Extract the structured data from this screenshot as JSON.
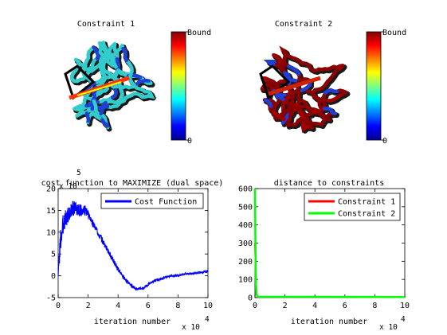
{
  "chart_data": [
    {
      "type": "image",
      "title": "Constraint 1",
      "colorbar": {
        "min_label": "0",
        "max_label": "Bound",
        "colormap": "jet"
      },
      "dominant_colors": [
        "#33cccc",
        "#1a1a1a",
        "#1f3fd9"
      ]
    },
    {
      "type": "image",
      "title": "Constraint 2",
      "colorbar": {
        "min_label": "0",
        "max_label": "Bound",
        "colormap": "jet"
      },
      "dominant_colors": [
        "#8b0000",
        "#1a1a1a",
        "#1f3fd9"
      ]
    },
    {
      "type": "line",
      "title": "cost function to MAXIMIZE (dual space)",
      "xlabel": "iteration number",
      "ylabel": "",
      "x_exponent": "x 10",
      "x_exponent_power": "4",
      "y_exponent": "x 10",
      "y_exponent_power": "5",
      "xlim": [
        0,
        10
      ],
      "ylim": [
        -5,
        20
      ],
      "xticks": [
        "0",
        "2",
        "4",
        "6",
        "8",
        "10"
      ],
      "yticks": [
        "-5",
        "0",
        "5",
        "10",
        "15",
        "20"
      ],
      "legend": "top-right",
      "series": [
        {
          "name": "Cost Function",
          "color": "#0000ff",
          "x": [
            0.0,
            0.1,
            0.2,
            0.3,
            0.4,
            0.6,
            0.8,
            1.0,
            1.2,
            1.5,
            1.8,
            2.0,
            2.4,
            2.8,
            3.2,
            3.6,
            4.0,
            4.4,
            4.8,
            5.2,
            5.6,
            6.0,
            6.5,
            7.0,
            7.5,
            8.0,
            8.5,
            9.0,
            9.5,
            10.0
          ],
          "y": [
            0.0,
            6.0,
            9.0,
            11.0,
            13.0,
            13.5,
            14.5,
            15.5,
            15.5,
            15.0,
            15.0,
            14.0,
            11.5,
            9.0,
            6.5,
            4.0,
            1.5,
            -0.5,
            -2.0,
            -3.0,
            -3.0,
            -2.0,
            -1.0,
            -0.5,
            0.0,
            0.0,
            0.5,
            0.5,
            0.8,
            1.0
          ],
          "noise_amplitude": [
            0.0,
            3.0,
            3.0,
            2.5,
            2.5,
            2.0,
            2.0,
            1.8,
            1.6,
            1.4,
            1.2,
            1.0,
            0.9,
            0.8,
            0.7,
            0.6,
            0.5,
            0.45,
            0.4,
            0.35,
            0.3,
            0.3,
            0.3,
            0.25,
            0.25,
            0.25,
            0.2,
            0.2,
            0.2,
            0.2
          ]
        }
      ]
    },
    {
      "type": "line",
      "title": "distance to constraints",
      "xlabel": "iteration number",
      "x_exponent": "x 10",
      "x_exponent_power": "4",
      "xlim": [
        0,
        10
      ],
      "ylim": [
        0,
        600
      ],
      "xticks": [
        "0",
        "2",
        "4",
        "6",
        "8",
        "10"
      ],
      "yticks": [
        "0",
        "100",
        "200",
        "300",
        "400",
        "500",
        "600"
      ],
      "legend": "top-right",
      "series": [
        {
          "name": "Constraint 1",
          "color": "#ff0000",
          "x": [
            0,
            0.05,
            0.1,
            0.2,
            10
          ],
          "y": [
            300,
            150,
            20,
            5,
            3
          ]
        },
        {
          "name": "Constraint 2",
          "color": "#00ff00",
          "x": [
            0,
            0.03,
            0.06,
            0.1,
            0.2,
            10
          ],
          "y": [
            600,
            300,
            80,
            15,
            5,
            3
          ]
        }
      ]
    }
  ]
}
